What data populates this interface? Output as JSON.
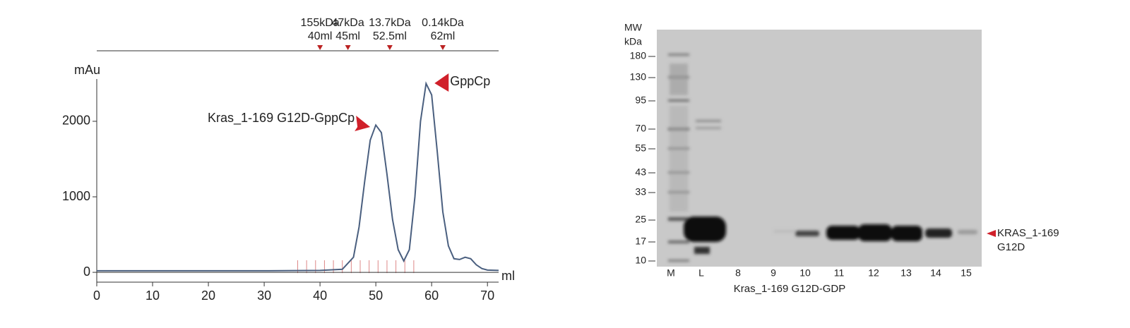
{
  "chart_data": {
    "type": "line",
    "x": [
      0,
      30,
      40,
      44,
      46,
      47,
      48,
      49,
      50,
      51,
      52,
      53,
      54,
      55,
      56,
      57,
      58,
      59,
      60,
      61,
      62,
      63,
      64,
      65,
      66,
      67,
      68,
      69,
      70,
      72
    ],
    "values": [
      20,
      20,
      25,
      40,
      200,
      600,
      1200,
      1750,
      1950,
      1850,
      1300,
      700,
      300,
      150,
      300,
      1000,
      2000,
      2500,
      2350,
      1600,
      800,
      350,
      180,
      170,
      200,
      180,
      100,
      50,
      30,
      25
    ],
    "color": "#4a5f7f",
    "xlim": [
      0,
      72
    ],
    "xticks": [
      0,
      10,
      20,
      30,
      40,
      50,
      60,
      70
    ],
    "ylim": [
      -130,
      2560
    ],
    "yticks": [
      0,
      1000,
      2000
    ],
    "y_label": "mAu",
    "x_label": "ml",
    "annotations": [
      {
        "text": "Kras_1-169 G12D-GppCp",
        "x": 50
      },
      {
        "text": "GppCp",
        "x": 59
      }
    ],
    "calibration": [
      {
        "mass": "155kDa",
        "volume": "40ml",
        "x": 40
      },
      {
        "mass": "47kDa",
        "volume": "45ml",
        "x": 45
      },
      {
        "mass": "13.7kDa",
        "volume": "52.5ml",
        "x": 52.5
      },
      {
        "mass": "0.14kDa",
        "volume": "62ml",
        "x": 62
      }
    ]
  },
  "gel": {
    "mw_title": [
      "MW",
      "kDa"
    ],
    "mw_labels": [
      "180",
      "130",
      "95",
      "70",
      "55",
      "43",
      "33",
      "25",
      "17",
      "10"
    ],
    "lanes": [
      "M",
      "L",
      "8",
      "9",
      "10",
      "11",
      "12",
      "13",
      "14",
      "15"
    ],
    "caption": "Kras_1-169 G12D-GDP",
    "band_label": [
      "KRAS_1-169",
      "G12D"
    ]
  }
}
